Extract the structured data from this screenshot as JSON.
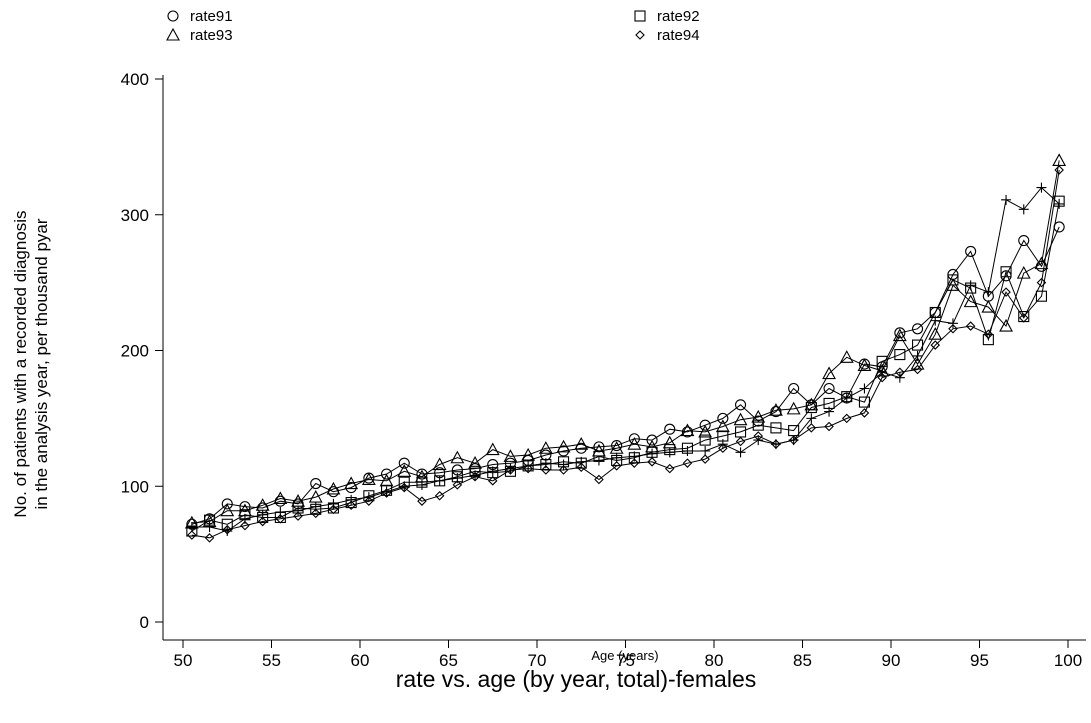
{
  "chart_data": {
    "type": "line",
    "title": "rate vs. age (by year, total)-females",
    "xlabel": "Age (years)",
    "ylabel": [
      "No. of patients with a recorded diagnosis",
      "in the analysis year, per thousand pyar"
    ],
    "xlim": [
      50,
      100
    ],
    "ylim": [
      0,
      400
    ],
    "xticks": [
      50,
      55,
      60,
      65,
      70,
      75,
      80,
      85,
      90,
      95,
      100
    ],
    "yticks": [
      0,
      100,
      200,
      300,
      400
    ],
    "grid": false,
    "legend_placement": "top",
    "x": [
      50.5,
      51.5,
      52.5,
      53.5,
      54.5,
      55.5,
      56.5,
      57.5,
      58.5,
      59.5,
      60.5,
      61.5,
      62.5,
      63.5,
      64.5,
      65.5,
      66.5,
      67.5,
      68.5,
      69.5,
      70.5,
      71.5,
      72.5,
      73.5,
      74.5,
      75.5,
      76.5,
      77.5,
      78.5,
      79.5,
      80.5,
      81.5,
      82.5,
      83.5,
      84.5,
      85.5,
      86.5,
      87.5,
      88.5,
      89.5,
      90.5,
      91.5,
      92.5,
      93.5,
      94.5,
      95.5,
      96.5,
      97.5,
      98.5,
      99.5
    ],
    "series": [
      {
        "name": "rate91",
        "marker": "circle",
        "values": [
          72,
          76,
          87,
          85,
          84,
          89,
          87,
          102,
          96,
          99,
          106,
          109,
          117,
          109,
          110,
          112,
          113,
          116,
          117,
          119,
          123,
          126,
          128,
          129,
          130,
          135,
          134,
          142,
          140,
          145,
          150,
          160,
          148,
          155,
          172,
          160,
          172,
          165,
          190,
          188,
          213,
          216,
          228,
          256,
          273,
          240,
          255,
          281,
          262,
          291
        ]
      },
      {
        "name": "rate92",
        "marker": "square",
        "values": [
          67,
          75,
          72,
          79,
          77,
          77,
          84,
          83,
          84,
          88,
          93,
          97,
          103,
          103,
          104,
          107,
          111,
          110,
          111,
          115,
          116,
          118,
          117,
          122,
          119,
          121,
          125,
          127,
          128,
          134,
          137,
          140,
          145,
          143,
          141,
          158,
          161,
          166,
          162,
          192,
          197,
          204,
          228,
          252,
          246,
          208,
          258,
          225,
          240,
          310
        ]
      },
      {
        "name": "rate93",
        "marker": "triangle",
        "values": [
          73,
          74,
          82,
          82,
          86,
          91,
          89,
          92,
          98,
          102,
          105,
          104,
          111,
          107,
          116,
          121,
          117,
          127,
          122,
          123,
          128,
          129,
          131,
          126,
          128,
          131,
          129,
          132,
          141,
          140,
          144,
          149,
          151,
          156,
          157,
          160,
          183,
          195,
          189,
          185,
          211,
          190,
          212,
          248,
          236,
          232,
          218,
          257,
          264,
          340
        ]
      },
      {
        "name": "rate94",
        "marker": "diamond",
        "values": [
          64,
          62,
          68,
          71,
          74,
          76,
          78,
          80,
          83,
          86,
          89,
          95,
          99,
          89,
          93,
          101,
          107,
          104,
          112,
          113,
          112,
          112,
          114,
          105,
          115,
          117,
          118,
          113,
          117,
          120,
          128,
          133,
          137,
          131,
          134,
          143,
          144,
          150,
          154,
          180,
          184,
          186,
          204,
          216,
          218,
          212,
          243,
          224,
          250,
          333
        ]
      },
      {
        "name": "",
        "marker": "plus",
        "values": [
          70,
          70,
          67,
          76,
          79,
          81,
          82,
          85,
          87,
          90,
          92,
          96,
          100,
          101,
          104,
          106,
          108,
          111,
          113,
          115,
          117,
          116,
          118,
          119,
          121,
          122,
          124,
          125,
          126,
          126,
          131,
          125,
          134,
          131,
          134,
          150,
          155,
          165,
          172,
          184,
          180,
          196,
          222,
          220,
          248,
          243,
          311,
          304,
          320,
          308
        ]
      }
    ]
  }
}
